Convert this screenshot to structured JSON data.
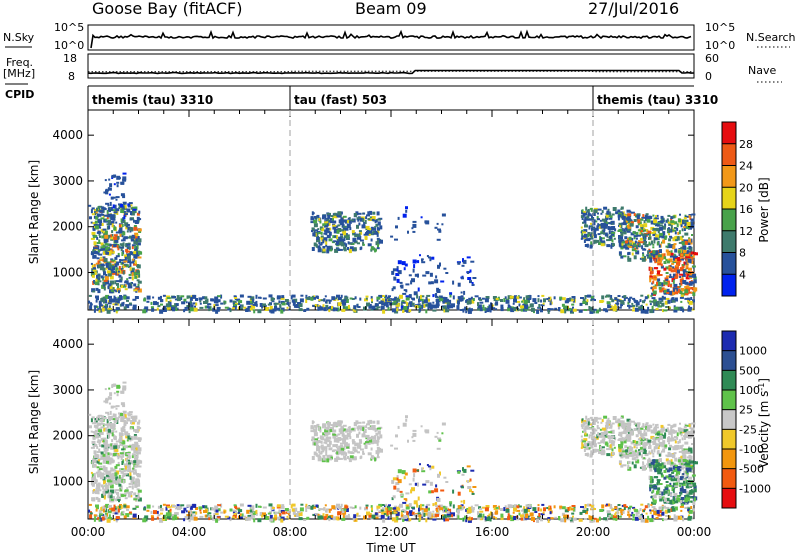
{
  "header": {
    "station": "Goose Bay (fitACF)",
    "beam": "Beam 09",
    "date": "27/Jul/2016"
  },
  "noise_panel": {
    "left_label": "N.Sky",
    "right_label": "N.Search",
    "ytick_top": "10^5",
    "ytick_bottom": "10^0"
  },
  "freq_panel": {
    "left_label_1": "Freq.",
    "left_label_2": "[MHz]",
    "right_label": "Nave",
    "left_ticks": [
      "18",
      "8"
    ],
    "right_ticks": [
      "60",
      "0"
    ]
  },
  "cpid": {
    "label": "CPID",
    "segments": [
      {
        "name": "themis (tau) 3310",
        "start_hour": 0
      },
      {
        "name": "tau (fast) 503",
        "start_hour": 8
      },
      {
        "name": "themis (tau) 3310",
        "start_hour": 20
      }
    ]
  },
  "chart_data": [
    {
      "type": "heatmap",
      "xlabel": "",
      "ylabel": "Slant Range [km]",
      "yticks": [
        1000,
        2000,
        3000,
        4000
      ],
      "xlim": [
        0,
        24
      ],
      "ylim": [
        180,
        4550
      ],
      "colorbar": {
        "label": "Power [dB]",
        "ticks": [
          "4",
          "8",
          "12",
          "16",
          "20",
          "24",
          "28"
        ],
        "colors": [
          "#0022ee",
          "#27519b",
          "#3e7a6c",
          "#48a24a",
          "#e6d419",
          "#f29818",
          "#ee5a16",
          "#e60d10"
        ]
      }
    },
    {
      "type": "heatmap",
      "xlabel": "Time UT",
      "ylabel": "Slant Range [km]",
      "yticks": [
        1000,
        2000,
        3000,
        4000
      ],
      "xlim": [
        0,
        24
      ],
      "ylim": [
        180,
        4550
      ],
      "xticks": [
        "00:00",
        "04:00",
        "08:00",
        "12:00",
        "16:00",
        "20:00",
        "00:00"
      ],
      "colorbar": {
        "label": "Velocity [m s-1]",
        "label_main": "Velocity [m s",
        "label_sup": "-1",
        "label_end": "]",
        "ticks": [
          "1000",
          "500",
          "100",
          "25",
          "-25",
          "-100",
          "-500",
          "-1000"
        ],
        "colors": [
          "#1c2bb0",
          "#2c4f92",
          "#2f8a55",
          "#5fc24a",
          "#c8c8c8",
          "#f0c82a",
          "#f2960e",
          "#f25a10",
          "#e60d10"
        ]
      }
    }
  ],
  "colors": {
    "power_blue": "#1f3fa8",
    "grey_scatter": "#c4c4c4",
    "dashed_line": "#a0a0a0"
  }
}
